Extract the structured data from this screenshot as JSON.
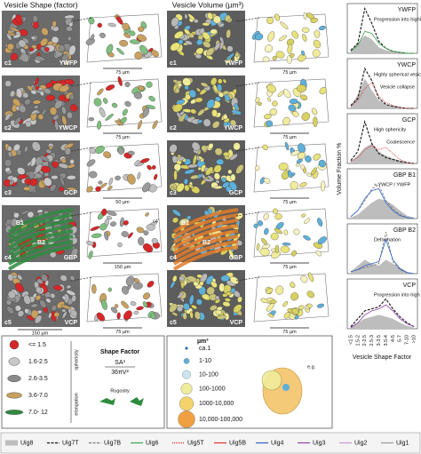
{
  "headers": [
    "Vesicle Shape (factor)",
    "Vesicle Volume (µm³)"
  ],
  "rows": [
    {
      "id": "c1",
      "site": "YWFP",
      "scales": [
        "75 µm",
        "75 µm"
      ]
    },
    {
      "id": "c2",
      "site": "YWCP",
      "scales": [
        "75 µm",
        "75 µm"
      ]
    },
    {
      "id": "c3",
      "site": "GCP",
      "scales": [
        "50 µm",
        "75 µm"
      ]
    },
    {
      "id": "c4",
      "site": "GBP",
      "scales": [
        "150 µm",
        "75 µm"
      ],
      "marks": [
        "B1",
        "B2",
        "c4'"
      ]
    },
    {
      "id": "c5",
      "site": "VCP",
      "scales": [
        "75 µm",
        "75 µm"
      ],
      "extra_scale": "150 µm"
    }
  ],
  "shape_legend": {
    "items": [
      "<= 1.5",
      "1.6-2.5",
      "2.6-3.5",
      "3.6-7.0",
      "7.0- 12"
    ],
    "axis": [
      "sphericity",
      "elongation"
    ],
    "title": "Shape Factor",
    "numerator": "SA³",
    "denominator": "36πV²",
    "rugosity": "Rugosity"
  },
  "volume_legend": {
    "title": "µm³",
    "items": [
      "ca.1",
      "1-10",
      "10-100",
      "100-1000",
      "1000-10,000",
      "10,000-100,000"
    ],
    "example": "e.g."
  },
  "series_legend": [
    {
      "name": "Uig8",
      "color": "#bdbdbd",
      "style": "area"
    },
    {
      "name": "Uig7T",
      "color": "#111111",
      "style": "dashed"
    },
    {
      "name": "Uig7B",
      "color": "#777777",
      "style": "dashed"
    },
    {
      "name": "Uig6",
      "color": "#3aa64a",
      "style": "solid"
    },
    {
      "name": "Uig5T",
      "color": "#d62728",
      "style": "dotted"
    },
    {
      "name": "Uig5B",
      "color": "#e0322c",
      "style": "solid"
    },
    {
      "name": "Uig4",
      "color": "#2c5fc9",
      "style": "solid"
    },
    {
      "name": "Uig3",
      "color": "#8e44ad",
      "style": "solid"
    },
    {
      "name": "Uig2",
      "color": "#c39bd3",
      "style": "solid"
    },
    {
      "name": "Uig1",
      "color": "#999999",
      "style": "solid"
    }
  ],
  "y_label": "Volume Fraction %",
  "x_label": "Vesicle Shape Factor",
  "chart_data": [
    {
      "type": "line",
      "title": "YWFP",
      "annotations": [
        "Progression into highly spherical - isolated - vesicles"
      ],
      "ylim": [
        0,
        50
      ],
      "series": [
        {
          "name": "Uig8",
          "values": [
            2,
            10,
            18,
            14,
            6,
            3,
            2,
            1,
            0,
            0
          ]
        },
        {
          "name": "Uig7T",
          "values": [
            3,
            10,
            45,
            30,
            12,
            5,
            2,
            1,
            0,
            0
          ]
        },
        {
          "name": "Uig6",
          "values": [
            2,
            8,
            22,
            20,
            10,
            5,
            2,
            1,
            0,
            0
          ]
        }
      ]
    },
    {
      "type": "line",
      "title": "YWCP",
      "annotations": [
        "Highly spherical vesicles",
        "Vesicle collapse"
      ],
      "ylim": [
        0,
        50
      ],
      "series": [
        {
          "name": "Uig8",
          "values": [
            2,
            14,
            30,
            18,
            8,
            4,
            2,
            1,
            0,
            0
          ]
        },
        {
          "name": "Uig7T",
          "values": [
            3,
            10,
            40,
            28,
            10,
            4,
            2,
            1,
            0,
            0
          ]
        },
        {
          "name": "Uig5T",
          "values": [
            2,
            8,
            20,
            26,
            12,
            6,
            3,
            1,
            0,
            0
          ]
        }
      ]
    },
    {
      "type": "line",
      "title": "GCP",
      "annotations": [
        "High sphericity",
        "Coalescence"
      ],
      "ylim": [
        0,
        50
      ],
      "series": [
        {
          "name": "Uig8",
          "values": [
            2,
            8,
            16,
            20,
            12,
            8,
            5,
            3,
            1,
            0
          ]
        },
        {
          "name": "Uig7T",
          "values": [
            3,
            12,
            42,
            20,
            10,
            6,
            4,
            2,
            1,
            0
          ]
        },
        {
          "name": "Uig5T",
          "values": [
            2,
            6,
            14,
            18,
            14,
            16,
            10,
            4,
            1,
            0
          ]
        }
      ]
    },
    {
      "type": "line",
      "title": "GBP B1",
      "annotations": [
        "≈ YWCP / YWFP"
      ],
      "ylim": [
        0,
        50
      ],
      "series": [
        {
          "name": "Uig8",
          "values": [
            1,
            4,
            10,
            16,
            20,
            18,
            14,
            8,
            3,
            1
          ]
        },
        {
          "name": "Uig7B",
          "values": [
            2,
            8,
            18,
            30,
            34,
            18,
            10,
            4,
            1,
            0
          ]
        },
        {
          "name": "Uig4",
          "values": [
            2,
            8,
            20,
            28,
            30,
            16,
            8,
            3,
            1,
            0
          ]
        }
      ]
    },
    {
      "type": "line",
      "title": "GBP B2",
      "annotations": [
        "Deformation"
      ],
      "ylim": [
        0,
        50
      ],
      "series": [
        {
          "name": "Uig8",
          "values": [
            2,
            8,
            14,
            10,
            8,
            14,
            10,
            6,
            2,
            0
          ]
        },
        {
          "name": "Uig7B",
          "values": [
            2,
            4,
            6,
            8,
            10,
            42,
            12,
            4,
            1,
            0
          ]
        },
        {
          "name": "Uig4",
          "values": [
            2,
            4,
            8,
            10,
            12,
            34,
            14,
            5,
            1,
            0
          ]
        }
      ]
    },
    {
      "type": "line",
      "title": "VCP",
      "annotations": [
        "Progression into high coalescence"
      ],
      "ylim": [
        0,
        50
      ],
      "categories": [
        "<1.5",
        "1.5-2",
        "2-2.5",
        "2.5-3",
        "3-3.5",
        "3.5-4",
        "4-5",
        "5-7",
        "7-10",
        ">10"
      ],
      "series": [
        {
          "name": "Uig8",
          "values": [
            2,
            6,
            10,
            12,
            14,
            12,
            10,
            6,
            3,
            1
          ]
        },
        {
          "name": "Uig7T",
          "values": [
            2,
            10,
            18,
            20,
            22,
            30,
            20,
            12,
            6,
            2
          ]
        },
        {
          "name": "Uig3",
          "values": [
            1,
            6,
            14,
            18,
            20,
            24,
            18,
            10,
            5,
            2
          ]
        }
      ]
    }
  ]
}
